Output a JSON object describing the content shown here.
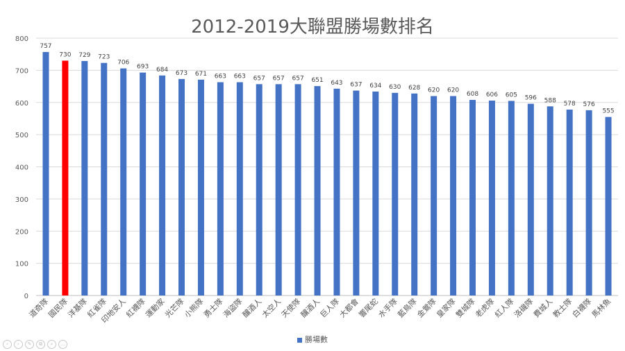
{
  "chart_data": {
    "type": "bar",
    "title": "2012-2019大聯盟勝場數排名",
    "categories": [
      "道奇隊",
      "國民隊",
      "洋基隊",
      "紅雀隊",
      "印地安人",
      "紅襪隊",
      "運動家",
      "光芒隊",
      "小熊隊",
      "勇士隊",
      "海盜隊",
      "釀酒人",
      "太空人",
      "天使隊",
      "釀酒人",
      "巨人隊",
      "大都會",
      "響尾蛇",
      "水手隊",
      "藍鳥隊",
      "金鶯隊",
      "皇家隊",
      "雙城隊",
      "老虎隊",
      "紅人隊",
      "洛磯隊",
      "費城人",
      "教士隊",
      "白襪隊",
      "馬林魚"
    ],
    "series": [
      {
        "name": "勝場數",
        "values": [
          757,
          730,
          729,
          723,
          706,
          693,
          684,
          673,
          671,
          663,
          663,
          657,
          657,
          657,
          651,
          643,
          637,
          634,
          630,
          628,
          620,
          620,
          608,
          606,
          605,
          596,
          588,
          578,
          576,
          555
        ]
      }
    ],
    "highlight_index": 1,
    "ylim": [
      0,
      800
    ],
    "yticks": [
      0,
      100,
      200,
      300,
      400,
      500,
      600,
      700,
      800
    ],
    "grid": true,
    "legend_position": "bottom",
    "colors": {
      "bar": "#4472C4",
      "highlight": "#FF0000",
      "grid": "#D9D9D9",
      "text": "#595959"
    }
  },
  "controls": {
    "icons": [
      "circle-left-icon",
      "circle-right-icon",
      "pen-icon",
      "copy-icon",
      "zoom-icon",
      "more-icon"
    ],
    "glyphs": [
      "‹",
      "›",
      "✎",
      "⧉",
      "⌕",
      "…"
    ]
  }
}
